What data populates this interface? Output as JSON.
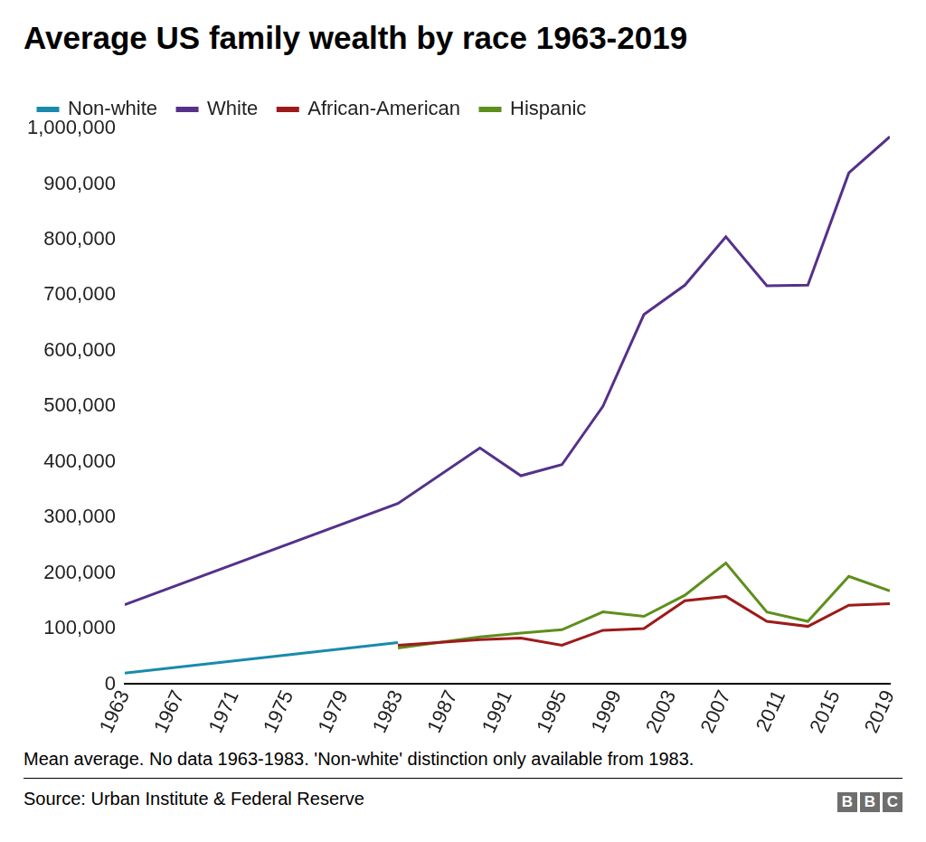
{
  "chart_data": {
    "type": "line",
    "title": "Average US family wealth by race 1963-2019",
    "footnote": "Mean average. No data 1963-1983. 'Non-white' distinction only available from 1983.",
    "source": "Source: Urban Institute & Federal Reserve",
    "logo": "BBC",
    "x": [
      1963,
      1983,
      1989,
      1992,
      1995,
      1998,
      2001,
      2004,
      2007,
      2010,
      2013,
      2016,
      2019
    ],
    "series": [
      {
        "name": "Non-white",
        "color": "#1a8aab",
        "values": [
          20000,
          75000,
          null,
          null,
          null,
          null,
          null,
          null,
          null,
          null,
          null,
          null,
          null
        ]
      },
      {
        "name": "White",
        "color": "#55318a",
        "values": [
          143000,
          325000,
          425000,
          375000,
          395000,
          500000,
          665000,
          718000,
          805000,
          717000,
          718000,
          920000,
          985000
        ]
      },
      {
        "name": "African-American",
        "color": "#9e1a1a",
        "values": [
          null,
          70000,
          80000,
          83000,
          70000,
          97000,
          100000,
          150000,
          158000,
          113000,
          104000,
          142000,
          145000
        ]
      },
      {
        "name": "Hispanic",
        "color": "#5e8f1c",
        "values": [
          null,
          65000,
          85000,
          92000,
          98000,
          130000,
          122000,
          160000,
          218000,
          130000,
          113000,
          194000,
          168000
        ]
      }
    ],
    "xlim": [
      1963,
      2019
    ],
    "xticks": [
      1963,
      1967,
      1971,
      1975,
      1979,
      1983,
      1987,
      1991,
      1995,
      1999,
      2003,
      2007,
      2011,
      2015,
      2019
    ],
    "ylim": [
      0,
      1000000
    ],
    "yticks": [
      0,
      {
        "value": 100000,
        "label": "100,000"
      },
      {
        "value": 200000,
        "label": "200,000"
      },
      {
        "value": 300000,
        "label": "300,000"
      },
      {
        "value": 400000,
        "label": "400,000"
      },
      {
        "value": 500000,
        "label": "500,000"
      },
      {
        "value": 600000,
        "label": "600,000"
      },
      {
        "value": 700000,
        "label": "700,000"
      },
      {
        "value": 800000,
        "label": "800,000"
      },
      {
        "value": 900000,
        "label": "900,000"
      },
      {
        "value": 1000000,
        "label": "1,000,000"
      }
    ],
    "grid": false,
    "legend": "top-left"
  }
}
